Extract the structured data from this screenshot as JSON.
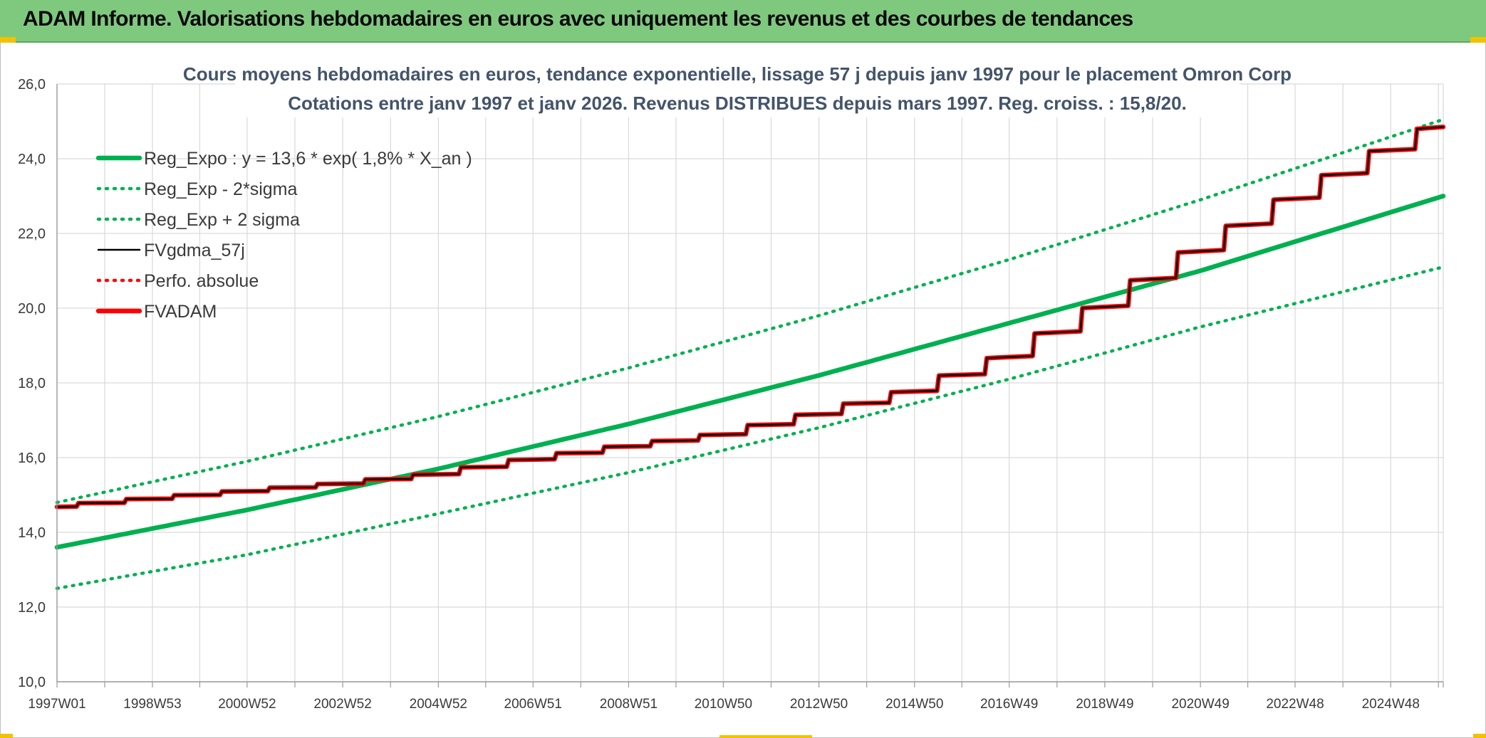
{
  "header": {
    "title": "ADAM Informe. Valorisations hebdomadaires en euros avec uniquement les revenus et des courbes de tendances"
  },
  "colors": {
    "banner": "#7fc97f",
    "trend_green": "#00b050",
    "adam_red": "#ff0000",
    "gdma_black": "#000000",
    "title_blue_gray": "#44546a"
  },
  "chart_data": {
    "type": "line",
    "title": "Cours moyens hebdomadaires en euros, tendance exponentielle, lissage 57 j depuis janv 1997 pour le placement Omron Corp",
    "subtitle": "Cotations entre janv 1997 et janv 2026. Revenus DISTRIBUES depuis mars 1997. Reg. croiss. : 15,8/20.",
    "xlabel": "",
    "ylabel": "",
    "x_range": [
      "1997W01",
      "2026W01"
    ],
    "x_ticks": [
      "1997W01",
      "1998W53",
      "2000W52",
      "2002W52",
      "2004W52",
      "2006W51",
      "2008W51",
      "2010W50",
      "2012W50",
      "2014W50",
      "2016W49",
      "2018W49",
      "2020W49",
      "2022W48",
      "2024W48"
    ],
    "ylim": [
      10.0,
      26.0
    ],
    "y_ticks": [
      "10,0",
      "12,0",
      "14,0",
      "16,0",
      "18,0",
      "20,0",
      "22,0",
      "24,0",
      "26,0"
    ],
    "grid": true,
    "legend_position": "top-left",
    "series": [
      {
        "name": "Reg_Expo : y = 13,6 * exp( 1,8% *  X_an )",
        "style": "solid-thick",
        "color": "#00b050",
        "x": [
          "1997W01",
          "2000W52",
          "2004W52",
          "2008W51",
          "2012W50",
          "2016W49",
          "2020W49",
          "2026W01"
        ],
        "values": [
          13.6,
          14.6,
          15.7,
          16.9,
          18.2,
          19.6,
          21.0,
          23.0
        ]
      },
      {
        "name": "Reg_Exp - 2*sigma",
        "style": "dotted",
        "color": "#00b050",
        "x": [
          "1997W01",
          "2000W52",
          "2004W52",
          "2008W51",
          "2012W50",
          "2016W49",
          "2020W49",
          "2026W01"
        ],
        "values": [
          12.5,
          13.4,
          14.5,
          15.6,
          16.8,
          18.1,
          19.5,
          21.1
        ]
      },
      {
        "name": "Reg_Exp + 2 sigma",
        "style": "dotted",
        "color": "#00b050",
        "x": [
          "1997W01",
          "2000W52",
          "2004W52",
          "2008W51",
          "2012W50",
          "2016W49",
          "2020W49",
          "2026W01"
        ],
        "values": [
          14.8,
          15.9,
          17.1,
          18.4,
          19.8,
          21.3,
          22.9,
          25.05
        ]
      },
      {
        "name": "FVgdma_57j",
        "style": "solid-thin",
        "color": "#000000",
        "x": [
          "1997W01",
          "1998W53",
          "2000W52",
          "2002W52",
          "2004W52",
          "2006W51",
          "2008W51",
          "2010W50",
          "2012W50",
          "2014W50",
          "2016W49",
          "2018W49",
          "2020W49",
          "2022W48",
          "2024W48",
          "2026W01"
        ],
        "values": [
          14.68,
          14.9,
          15.1,
          15.3,
          15.55,
          15.95,
          16.3,
          16.6,
          17.15,
          17.75,
          18.65,
          20.0,
          21.5,
          22.9,
          24.2,
          24.85
        ]
      },
      {
        "name": "Perfo. absolue",
        "style": "dotted",
        "color": "#ff0000",
        "x": [],
        "values": []
      },
      {
        "name": "FVADAM",
        "style": "solid-thick",
        "color": "#ff0000",
        "x": [
          "1997W01",
          "1998W53",
          "2000W52",
          "2002W52",
          "2004W52",
          "2006W51",
          "2008W51",
          "2010W50",
          "2012W50",
          "2014W50",
          "2016W49",
          "2018W49",
          "2020W49",
          "2022W48",
          "2024W48",
          "2026W01"
        ],
        "values": [
          14.68,
          14.9,
          15.1,
          15.3,
          15.55,
          15.95,
          16.3,
          16.6,
          17.15,
          17.75,
          18.65,
          20.0,
          21.5,
          22.9,
          24.2,
          24.85
        ]
      }
    ]
  }
}
